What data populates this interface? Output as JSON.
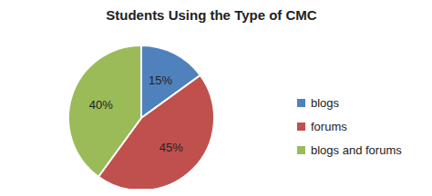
{
  "chart_data": {
    "type": "pie",
    "title": "Students Using the Type of CMC",
    "categories": [
      "blogs",
      "forums",
      "blogs and forums"
    ],
    "values": [
      15,
      45,
      40
    ],
    "value_labels": [
      "15%",
      "45%",
      "40%"
    ],
    "colors": [
      "#4f81bd",
      "#c0504d",
      "#9bbb59"
    ],
    "data_labels": true,
    "legend": "right"
  }
}
